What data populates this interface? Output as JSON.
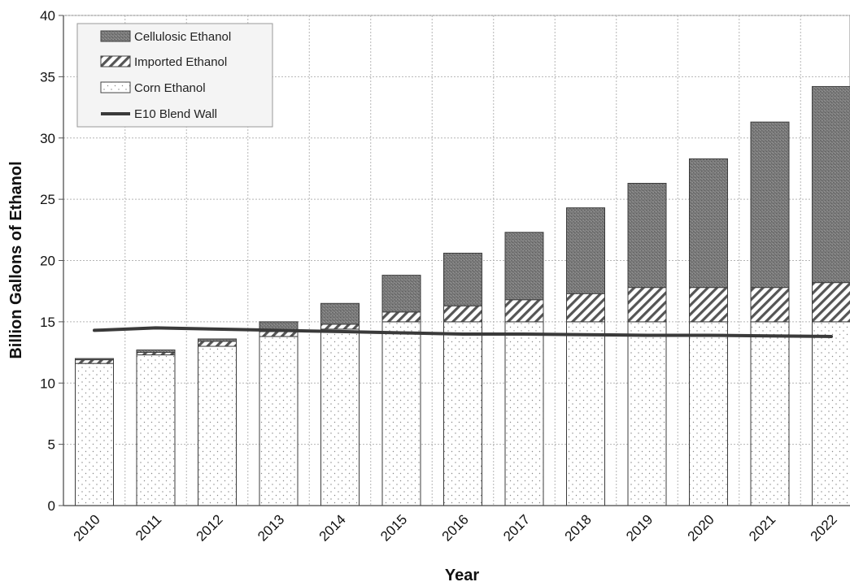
{
  "chart_data": {
    "type": "bar",
    "stacked": true,
    "title": "",
    "xlabel": "Year",
    "ylabel": "Billion Gallons of Ethanol",
    "ylim": [
      0,
      40
    ],
    "yticks": [
      "0",
      "5",
      "10",
      "15",
      "20",
      "25",
      "30",
      "35",
      "40"
    ],
    "categories": [
      "2010",
      "2011",
      "2012",
      "2013",
      "2014",
      "2015",
      "2016",
      "2017",
      "2018",
      "2019",
      "2020",
      "2021",
      "2022"
    ],
    "grid": true,
    "legend_position": "top-left",
    "series": [
      {
        "name": "Corn Ethanol",
        "kind": "bar",
        "pattern": "dots",
        "color": "#ffffff",
        "values": [
          11.6,
          12.3,
          13.0,
          13.8,
          14.4,
          15.0,
          15.0,
          15.0,
          15.0,
          15.0,
          15.0,
          15.0,
          15.0
        ]
      },
      {
        "name": "Imported Ethanol",
        "kind": "bar",
        "pattern": "diagonal-hatch",
        "color": "#ffffff",
        "values": [
          0.3,
          0.2,
          0.4,
          0.4,
          0.4,
          0.8,
          1.3,
          1.8,
          2.3,
          2.8,
          2.8,
          2.8,
          3.2
        ]
      },
      {
        "name": "Cellulosic Ethanol",
        "kind": "bar",
        "pattern": "dark-stipple",
        "color": "#707070",
        "values": [
          0.1,
          0.2,
          0.2,
          0.8,
          1.7,
          3.0,
          4.3,
          5.5,
          7.0,
          8.5,
          10.5,
          13.5,
          16.0
        ]
      },
      {
        "name": "E10 Blend Wall",
        "kind": "line",
        "color": "#3a3a3a",
        "values": [
          14.3,
          14.5,
          14.4,
          14.3,
          14.2,
          14.1,
          14.0,
          14.0,
          13.95,
          13.9,
          13.9,
          13.85,
          13.8
        ]
      }
    ]
  }
}
